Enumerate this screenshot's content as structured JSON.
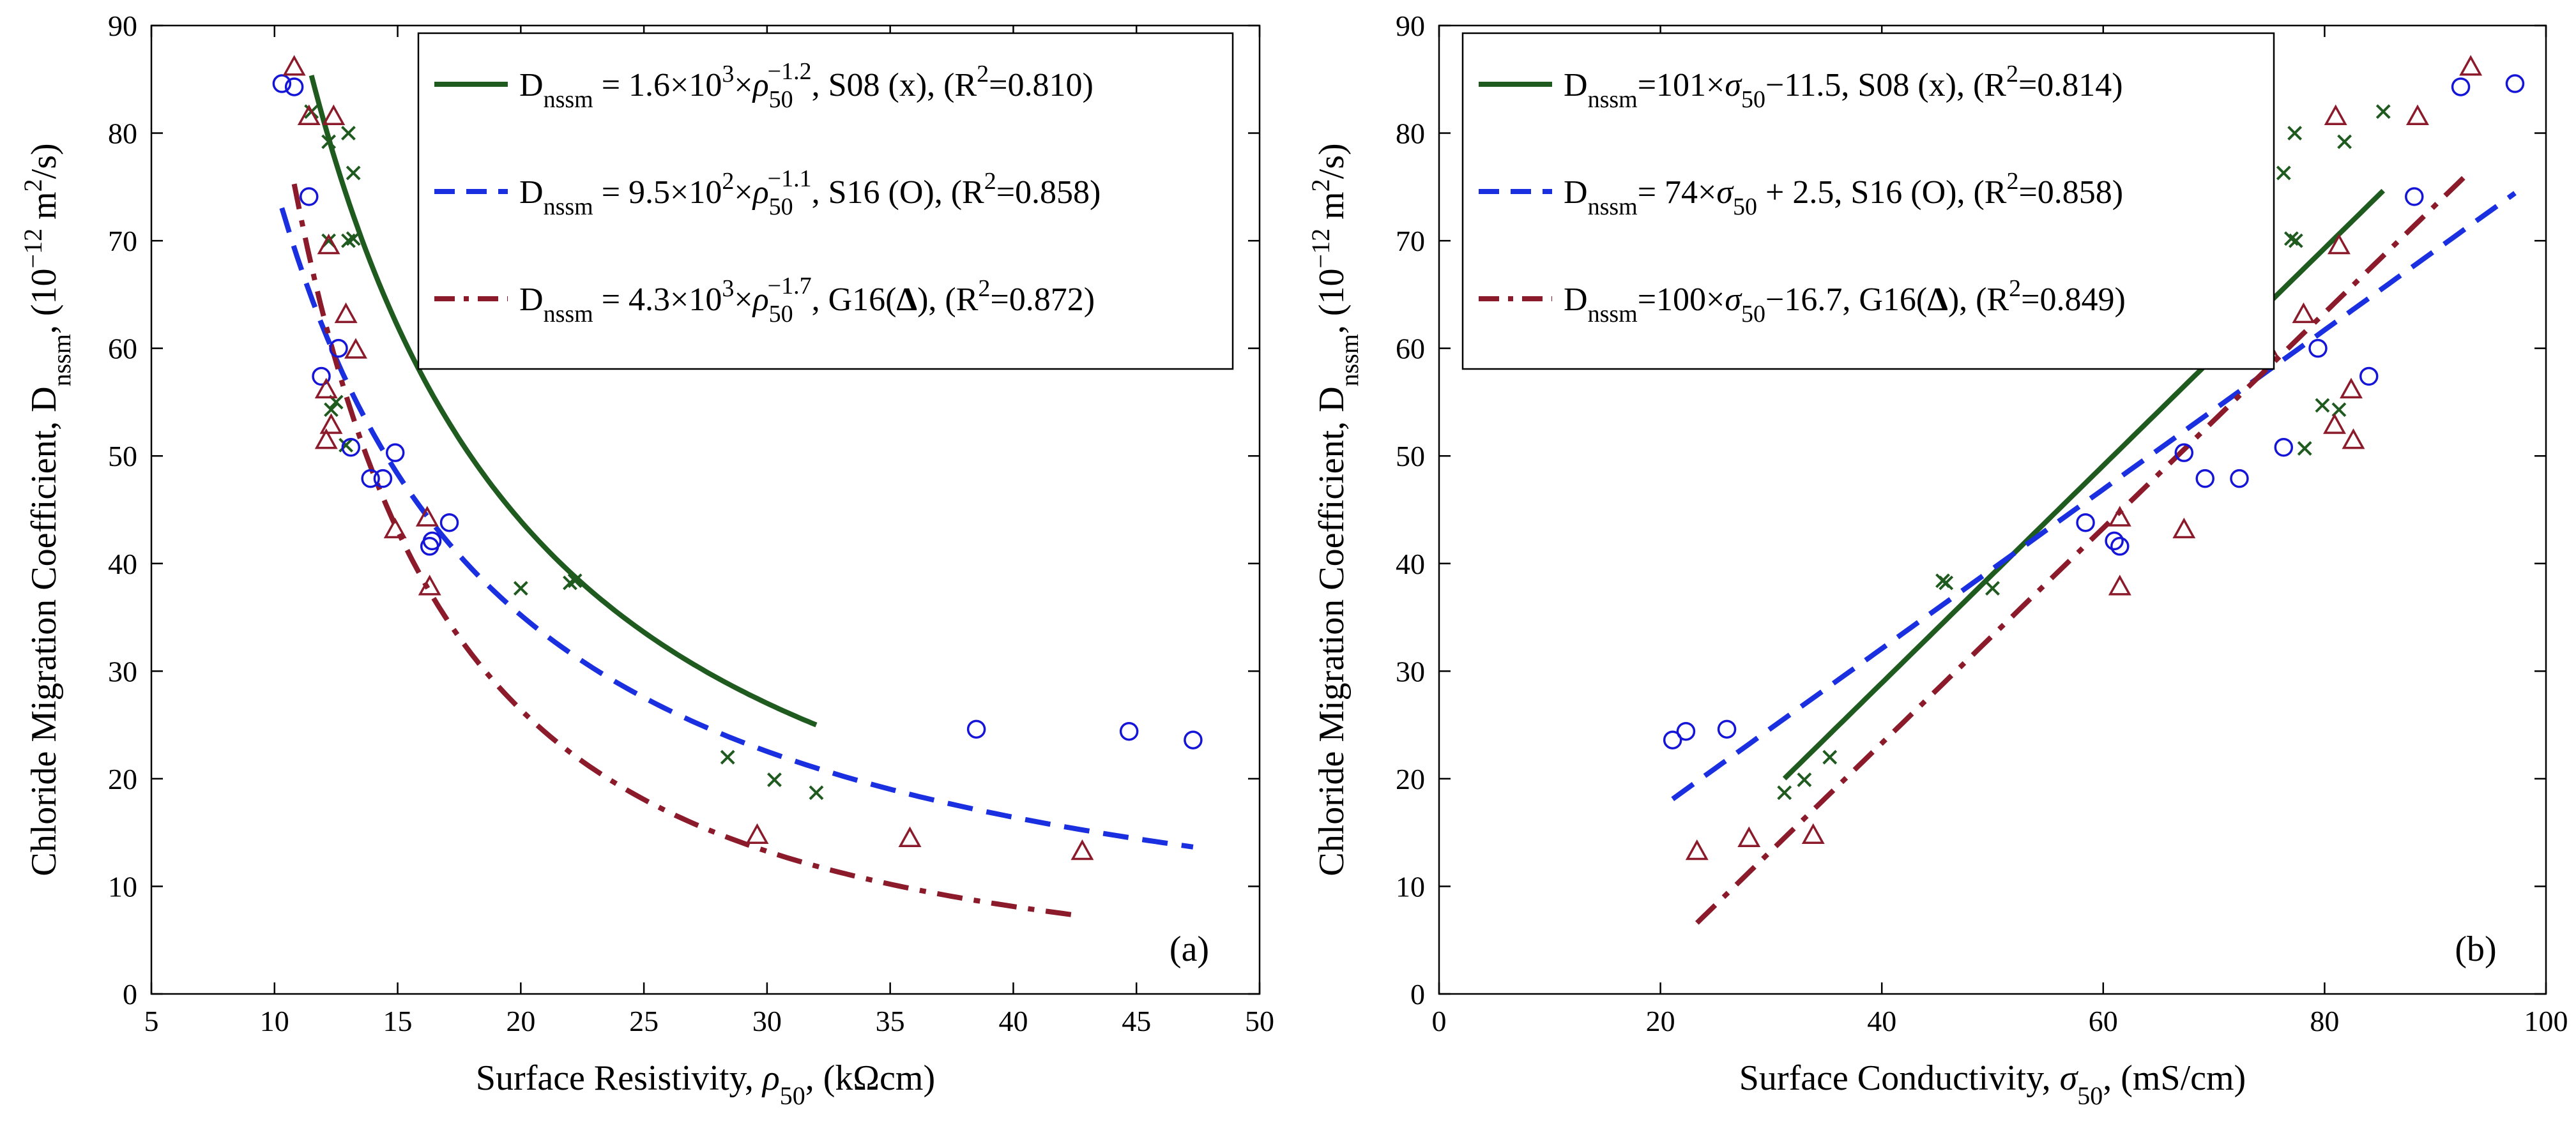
{
  "chart_data": [
    {
      "id": "a",
      "type": "scatter",
      "panel_label": "(a)",
      "xlabel": {
        "prefix": "Surface Resistivity, ",
        "sym": "ρ",
        "sub": "50",
        "suffix": ", (kΩcm)"
      },
      "ylabel": {
        "prefix": "Chloride Migration Coefficient, D",
        "sub": "nssm",
        "middle": ", (10",
        "sup": "−12",
        "unit": " m",
        "sup2": "2",
        "end": "/s)"
      },
      "xlim": [
        5,
        50
      ],
      "ylim": [
        0,
        90
      ],
      "xticks": [
        5,
        10,
        15,
        20,
        25,
        30,
        35,
        40,
        45,
        50
      ],
      "yticks": [
        0,
        10,
        20,
        30,
        40,
        50,
        60,
        70,
        80,
        90
      ],
      "legend_position": "top-right",
      "series": [
        {
          "name": "S08 (x)",
          "marker": "x",
          "color": "#1f5a1f",
          "points": [
            [
              11.5,
              82
            ],
            [
              12.2,
              79.2
            ],
            [
              13,
              80
            ],
            [
              13.2,
              76.3
            ],
            [
              12.2,
              70
            ],
            [
              13,
              70
            ],
            [
              13.2,
              70.2
            ],
            [
              12.3,
              54.3
            ],
            [
              12.5,
              55
            ],
            [
              12.9,
              51
            ],
            [
              20,
              37.7
            ],
            [
              22,
              38.2
            ],
            [
              22.2,
              38.4
            ],
            [
              28.4,
              22
            ],
            [
              30.3,
              19.9
            ],
            [
              32,
              18.7
            ]
          ]
        },
        {
          "name": "S16 (O)",
          "marker": "o",
          "color": "#1515d8",
          "points": [
            [
              10.3,
              84.6
            ],
            [
              10.8,
              84.3
            ],
            [
              11.4,
              74.1
            ],
            [
              11.9,
              57.4
            ],
            [
              12.6,
              60
            ],
            [
              13.1,
              50.8
            ],
            [
              13.9,
              47.9
            ],
            [
              14.4,
              47.9
            ],
            [
              14.9,
              50.3
            ],
            [
              16.3,
              41.6
            ],
            [
              16.4,
              42.1
            ],
            [
              17.1,
              43.8
            ],
            [
              38.5,
              24.6
            ],
            [
              44.7,
              24.4
            ],
            [
              47.3,
              23.6
            ]
          ]
        },
        {
          "name": "G16 (Δ)",
          "marker": "triangle",
          "color": "#8b1a2b",
          "points": [
            [
              10.8,
              86.1
            ],
            [
              11.4,
              81.5
            ],
            [
              12.4,
              81.5
            ],
            [
              12.2,
              69.5
            ],
            [
              12.9,
              63.1
            ],
            [
              13.3,
              59.8
            ],
            [
              12.1,
              56.1
            ],
            [
              12.3,
              52.8
            ],
            [
              12.1,
              51.4
            ],
            [
              14.9,
              43.1
            ],
            [
              16.2,
              44.2
            ],
            [
              16.3,
              37.8
            ],
            [
              29.6,
              14.7
            ],
            [
              35.8,
              14.4
            ],
            [
              42.8,
              13.2
            ]
          ]
        }
      ],
      "fits": [
        {
          "label": "S08",
          "color": "#1f5a1f",
          "dash": "solid",
          "coef": 1600,
          "exp": -1.2,
          "x_range": [
            11.5,
            32
          ],
          "legend": {
            "pre": "D",
            "sub": "nssm",
            "eq": " = 1.6×10",
            "eq_sup": "3",
            "mid": "×",
            "sym": "ρ",
            "sym_sub": "50",
            "exp_text": "−1.2",
            "tail": ", S08 (x),  (R",
            "r_sup": "2",
            "r_val": "=0.810)"
          }
        },
        {
          "label": "S16",
          "color": "#1a2fe0",
          "dash": "dashed",
          "coef": 950,
          "exp": -1.1,
          "x_range": [
            10.3,
            47.3
          ],
          "legend": {
            "pre": "D",
            "sub": "nssm",
            "eq": " = 9.5×10",
            "eq_sup": "2",
            "mid": "×",
            "sym": "ρ",
            "sym_sub": "50",
            "exp_text": "−1.1",
            "tail": ", S16 (O), (R",
            "r_sup": "2",
            "r_val": "=0.858)"
          }
        },
        {
          "label": "G16",
          "color": "#8b1a2b",
          "dash": "dashdot",
          "coef": 4300,
          "exp": -1.7,
          "x_range": [
            10.8,
            42.8
          ],
          "legend": {
            "pre": "D",
            "sub": "nssm",
            "eq": " = 4.3×10",
            "eq_sup": "3",
            "mid": "×",
            "sym": "ρ",
            "sym_sub": "50",
            "exp_text": "−1.7",
            "tail": ", G16(",
            "delta": "Δ",
            "tail2": "), (R",
            "r_sup": "2",
            "r_val": "=0.872)"
          }
        }
      ]
    },
    {
      "id": "b",
      "type": "scatter",
      "panel_label": "(b)",
      "xlabel": {
        "prefix": "Surface Conductivity, ",
        "sym": "σ",
        "sub": "50",
        "suffix": ", (mS/cm)"
      },
      "ylabel": {
        "prefix": "Chloride Migration Coefficient, D",
        "sub": "nssm",
        "middle": ", (10",
        "sup": "−12",
        "unit": " m",
        "sup2": "2",
        "end": "/s)"
      },
      "xlim": [
        0,
        100
      ],
      "ylim": [
        0,
        90
      ],
      "xticks": [
        0,
        20,
        40,
        60,
        80,
        100
      ],
      "yticks": [
        0,
        10,
        20,
        30,
        40,
        50,
        60,
        70,
        80,
        90
      ],
      "legend_position": "top-left",
      "series": [
        {
          "name": "S08 (x)",
          "marker": "x",
          "color": "#1f5a1f",
          "points": [
            [
              31.2,
              18.7
            ],
            [
              33,
              19.9
            ],
            [
              35.3,
              22
            ],
            [
              45.5,
              38.4
            ],
            [
              45.8,
              38.2
            ],
            [
              50,
              37.7
            ],
            [
              76.3,
              76.3
            ],
            [
              77,
              70.2
            ],
            [
              77.4,
              70
            ],
            [
              77.3,
              80
            ],
            [
              78.2,
              50.7
            ],
            [
              79.8,
              54.7
            ],
            [
              81.3,
              54.3
            ],
            [
              81.8,
              79.2
            ],
            [
              85.3,
              82
            ]
          ]
        },
        {
          "name": "S16 (O)",
          "marker": "o",
          "color": "#1515d8",
          "points": [
            [
              21.1,
              23.6
            ],
            [
              22.3,
              24.4
            ],
            [
              26,
              24.6
            ],
            [
              58.4,
              43.8
            ],
            [
              61,
              42.1
            ],
            [
              61.5,
              41.6
            ],
            [
              67.3,
              50.3
            ],
            [
              69.2,
              47.9
            ],
            [
              72.3,
              47.9
            ],
            [
              76.3,
              50.8
            ],
            [
              79.4,
              60
            ],
            [
              84,
              57.4
            ],
            [
              88.1,
              74.1
            ],
            [
              92.3,
              84.3
            ],
            [
              97.2,
              84.6
            ]
          ]
        },
        {
          "name": "G16 (Δ)",
          "marker": "triangle",
          "color": "#8b1a2b",
          "points": [
            [
              23.3,
              13.2
            ],
            [
              28,
              14.4
            ],
            [
              33.8,
              14.7
            ],
            [
              61.5,
              44.2
            ],
            [
              61.5,
              37.8
            ],
            [
              67.3,
              43.1
            ],
            [
              74.9,
              59.8
            ],
            [
              78.1,
              63.1
            ],
            [
              80.9,
              52.8
            ],
            [
              81,
              81.5
            ],
            [
              81.3,
              69.5
            ],
            [
              82.4,
              56.1
            ],
            [
              82.6,
              51.4
            ],
            [
              88.4,
              81.5
            ],
            [
              93.2,
              86.1
            ]
          ]
        }
      ],
      "fits": [
        {
          "label": "S08",
          "color": "#1f5a1f",
          "dash": "solid",
          "slope": 101,
          "intercept": -11.5,
          "x_range": [
            31.2,
            85.3
          ],
          "legend": {
            "pre": "D",
            "sub": "nssm",
            "eq": "=101×",
            "sym": "σ",
            "sym_sub": "50",
            "tail": "−11.5, S08 (x),  (R",
            "r_sup": "2",
            "r_val": "=0.814)"
          }
        },
        {
          "label": "S16",
          "color": "#1a2fe0",
          "dash": "dashed",
          "slope": 74,
          "intercept": 2.5,
          "x_range": [
            21.1,
            97.2
          ],
          "legend": {
            "pre": "D",
            "sub": "nssm",
            "eq": "=  74×",
            "sym": "σ",
            "sym_sub": "50",
            "tail": " + 2.5, S16 (O), (R",
            "r_sup": "2",
            "r_val": "=0.858)"
          }
        },
        {
          "label": "G16",
          "color": "#8b1a2b",
          "dash": "dashdot",
          "slope": 100,
          "intercept": -16.7,
          "x_range": [
            23.3,
            93.2
          ],
          "legend": {
            "pre": "D",
            "sub": "nssm",
            "eq": "=100×",
            "sym": "σ",
            "sym_sub": "50",
            "tail": "−16.7, G16(",
            "delta": "Δ",
            "tail2": "), (R",
            "r_sup": "2",
            "r_val": "=0.849)"
          }
        }
      ]
    }
  ]
}
